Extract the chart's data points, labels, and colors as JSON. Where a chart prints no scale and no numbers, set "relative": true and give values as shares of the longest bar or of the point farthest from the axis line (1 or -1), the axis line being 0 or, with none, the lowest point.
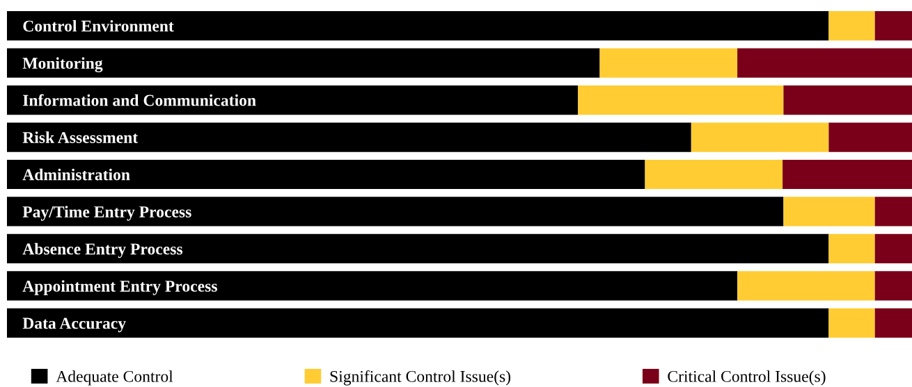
{
  "chart_data": {
    "type": "bar",
    "orientation": "horizontal",
    "stacked": true,
    "relative": true,
    "legend": "bottom",
    "grid": false,
    "categories": [
      "Control Environment",
      "Monitoring",
      "Information and Communication",
      "Risk Assessment",
      "Administration",
      "Pay/Time Entry Process",
      "Absence Entry Process",
      "Appointment Entry Process",
      "Data Accuracy"
    ],
    "series": [
      {
        "name": "Adequate Control",
        "color": "#000000",
        "values": [
          0.908,
          0.655,
          0.631,
          0.756,
          0.705,
          0.858,
          0.908,
          0.807,
          0.908
        ]
      },
      {
        "name": "Significant Control Issue(s)",
        "color": "#ffcc33",
        "values": [
          0.051,
          0.152,
          0.227,
          0.152,
          0.152,
          0.101,
          0.051,
          0.152,
          0.051
        ]
      },
      {
        "name": "Critical Control Issue(s)",
        "color": "#7a0019",
        "values": [
          0.041,
          0.193,
          0.142,
          0.092,
          0.143,
          0.041,
          0.041,
          0.041,
          0.041
        ]
      }
    ]
  }
}
